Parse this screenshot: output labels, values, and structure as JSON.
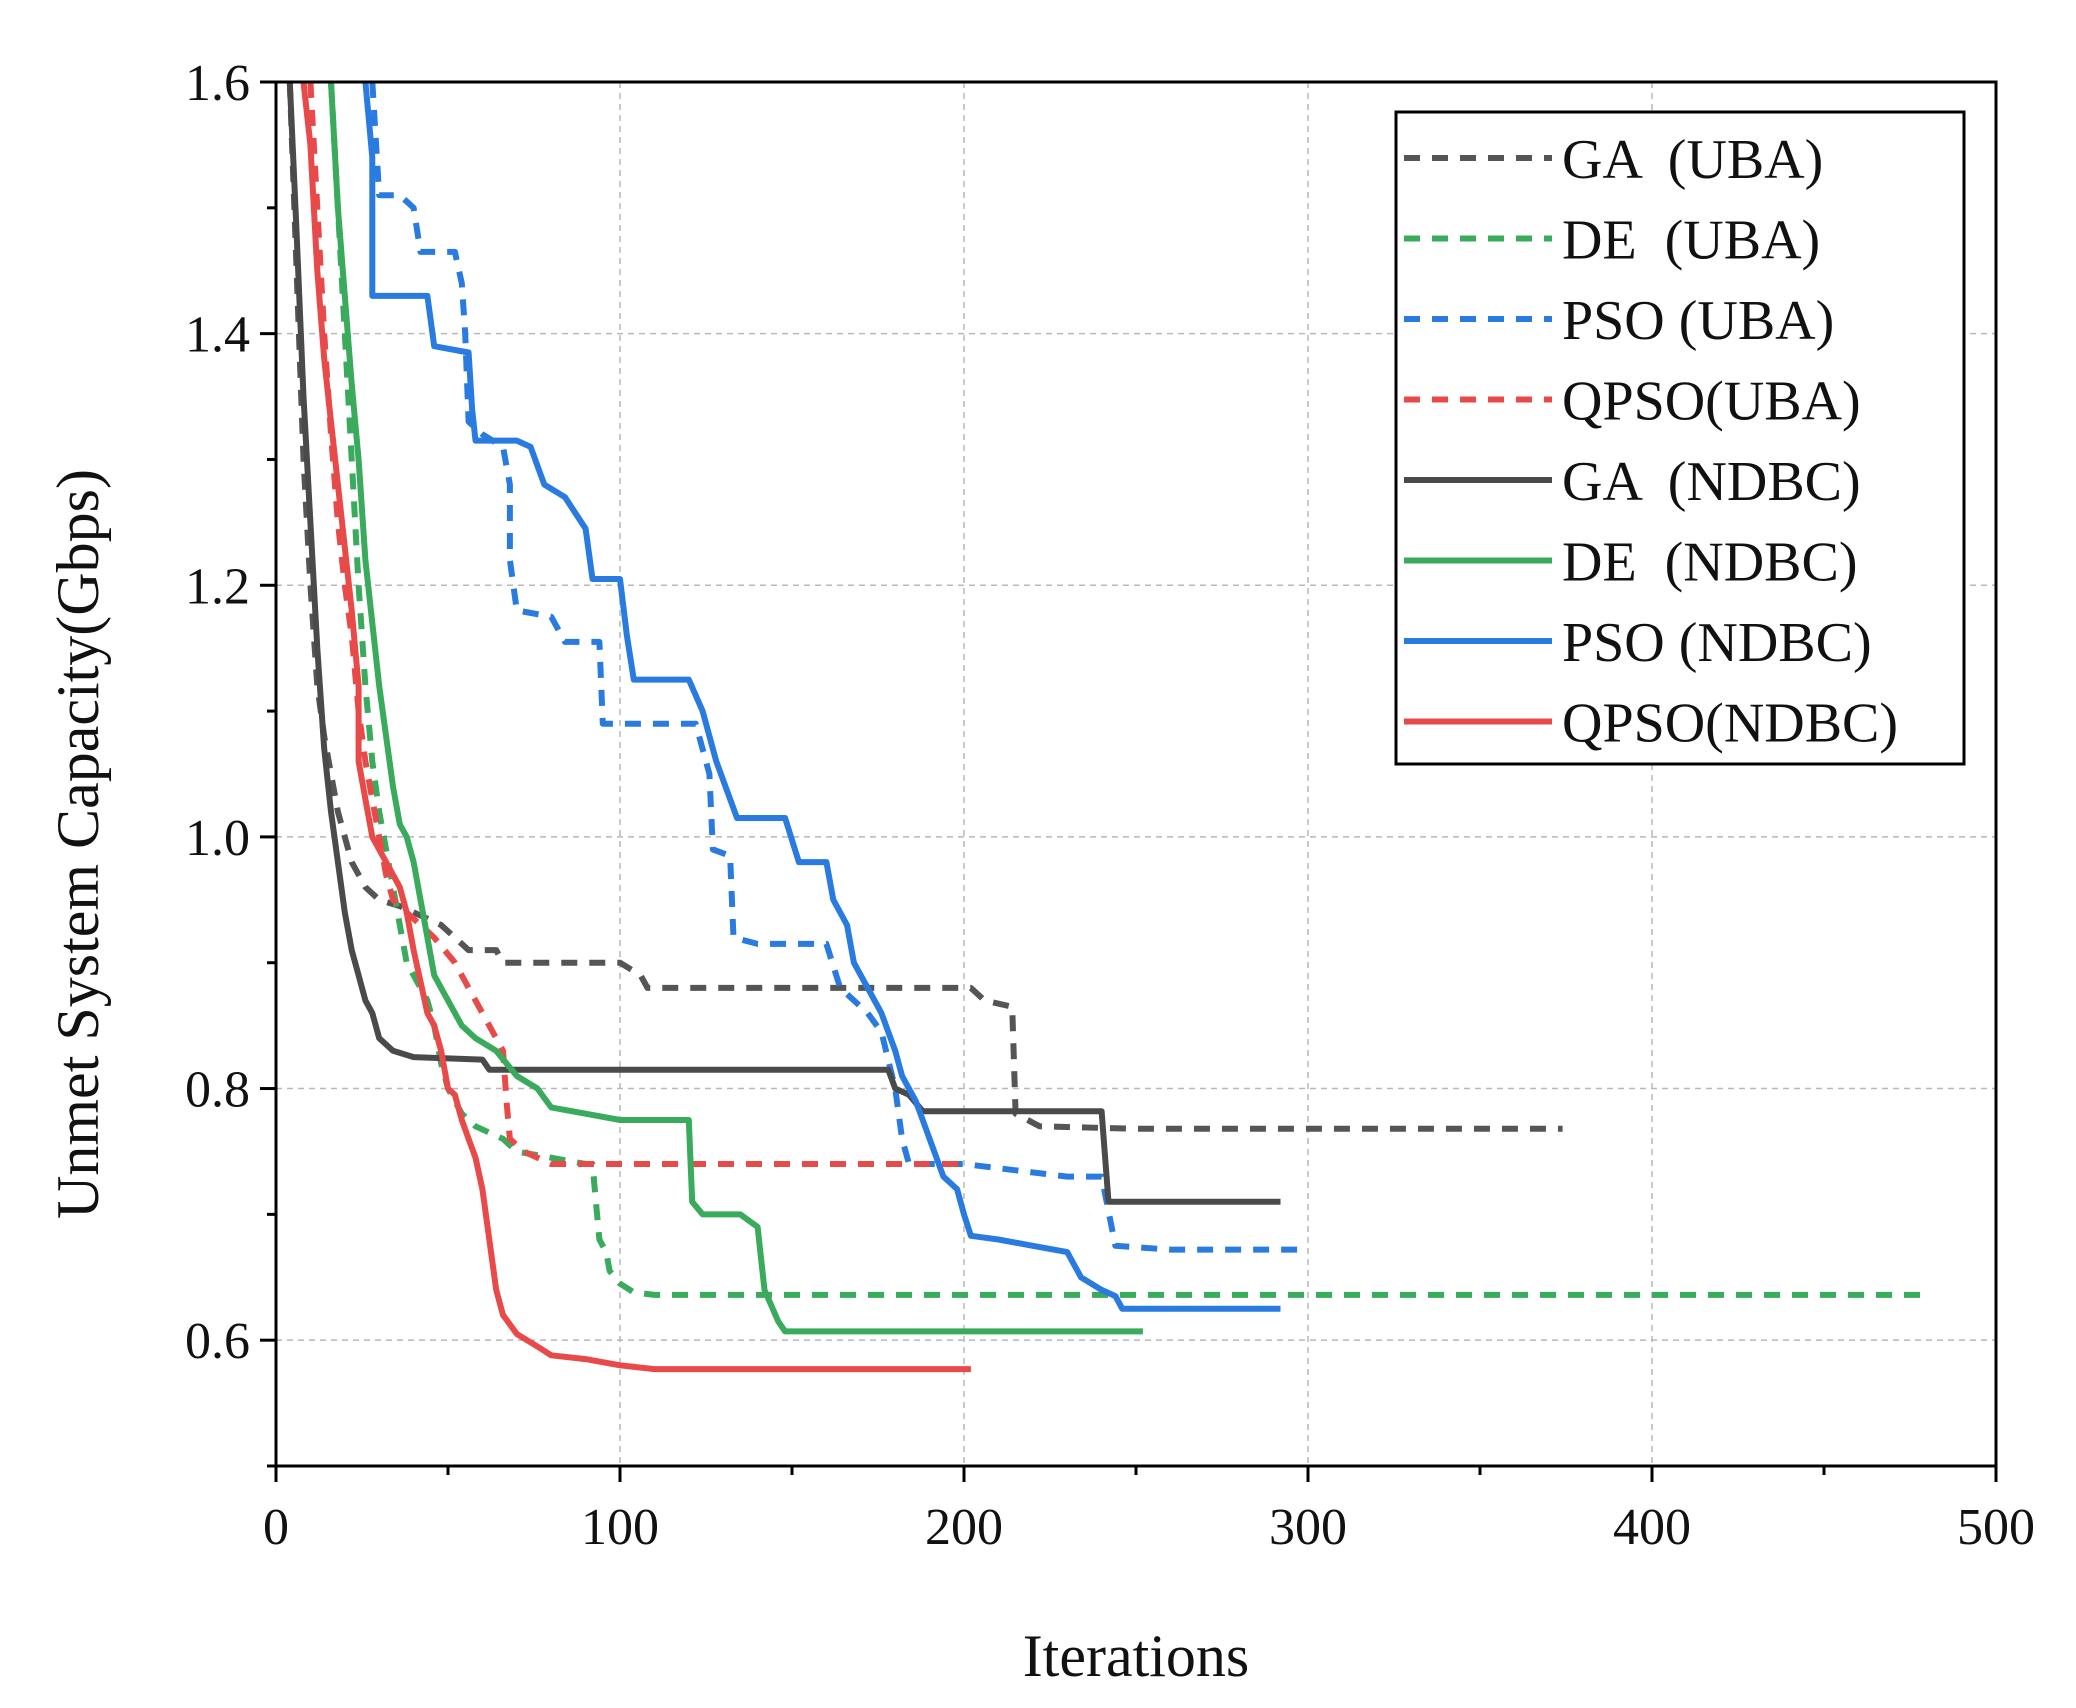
{
  "chart_data": {
    "type": "line",
    "title": "",
    "xlabel": "Iterations",
    "ylabel": "Unmet System Capacity(Gbps)",
    "xlim": [
      0,
      500
    ],
    "ylim": [
      0.5,
      1.6
    ],
    "x_ticks": [
      0,
      100,
      200,
      300,
      400,
      500
    ],
    "x_tick_labels": [
      "0",
      "100",
      "200",
      "300",
      "400",
      "500"
    ],
    "y_ticks": [
      0.6,
      0.8,
      1.0,
      1.2,
      1.4,
      1.6
    ],
    "y_tick_labels": [
      "0.6",
      "0.8",
      "1.0",
      "1.2",
      "1.4",
      "1.6"
    ],
    "grid": true,
    "legend_position": "top-right",
    "series": [
      {
        "name": "GA  (UBA)",
        "color": "#555555",
        "style": "dashed",
        "points": [
          [
            4,
            1.6
          ],
          [
            6,
            1.45
          ],
          [
            8,
            1.3
          ],
          [
            10,
            1.2
          ],
          [
            12,
            1.12
          ],
          [
            14,
            1.08
          ],
          [
            16,
            1.05
          ],
          [
            18,
            1.02
          ],
          [
            20,
            1.0
          ],
          [
            22,
            0.98
          ],
          [
            24,
            0.97
          ],
          [
            26,
            0.96
          ],
          [
            30,
            0.95
          ],
          [
            36,
            0.945
          ],
          [
            40,
            0.94
          ],
          [
            44,
            0.935
          ],
          [
            48,
            0.93
          ],
          [
            52,
            0.92
          ],
          [
            56,
            0.91
          ],
          [
            60,
            0.91
          ],
          [
            64,
            0.91
          ],
          [
            66,
            0.9
          ],
          [
            70,
            0.9
          ],
          [
            90,
            0.9
          ],
          [
            100,
            0.9
          ],
          [
            106,
            0.89
          ],
          [
            108,
            0.88
          ],
          [
            180,
            0.88
          ],
          [
            200,
            0.88
          ],
          [
            202,
            0.88
          ],
          [
            206,
            0.87
          ],
          [
            214,
            0.865
          ],
          [
            215,
            0.78
          ],
          [
            222,
            0.77
          ],
          [
            250,
            0.768
          ],
          [
            300,
            0.768
          ],
          [
            374,
            0.768
          ]
        ]
      },
      {
        "name": "DE  (UBA)",
        "color": "#3aaa5c",
        "style": "dashed",
        "points": [
          [
            16,
            1.6
          ],
          [
            18,
            1.5
          ],
          [
            20,
            1.4
          ],
          [
            22,
            1.3
          ],
          [
            24,
            1.2
          ],
          [
            26,
            1.12
          ],
          [
            28,
            1.06
          ],
          [
            30,
            1.02
          ],
          [
            32,
            0.99
          ],
          [
            34,
            0.96
          ],
          [
            36,
            0.93
          ],
          [
            38,
            0.9
          ],
          [
            40,
            0.89
          ],
          [
            44,
            0.87
          ],
          [
            46,
            0.85
          ],
          [
            48,
            0.82
          ],
          [
            50,
            0.8
          ],
          [
            52,
            0.79
          ],
          [
            54,
            0.78
          ],
          [
            58,
            0.77
          ],
          [
            62,
            0.765
          ],
          [
            66,
            0.76
          ],
          [
            70,
            0.75
          ],
          [
            80,
            0.745
          ],
          [
            90,
            0.74
          ],
          [
            92,
            0.74
          ],
          [
            93,
            0.71
          ],
          [
            94,
            0.68
          ],
          [
            96,
            0.67
          ],
          [
            97,
            0.655
          ],
          [
            100,
            0.645
          ],
          [
            104,
            0.638
          ],
          [
            110,
            0.636
          ],
          [
            150,
            0.636
          ],
          [
            200,
            0.636
          ],
          [
            300,
            0.636
          ],
          [
            400,
            0.636
          ],
          [
            478,
            0.636
          ]
        ]
      },
      {
        "name": "PSO (UBA)",
        "color": "#2a7be0",
        "style": "dashed",
        "points": [
          [
            28,
            1.6
          ],
          [
            30,
            1.51
          ],
          [
            36,
            1.51
          ],
          [
            40,
            1.5
          ],
          [
            42,
            1.465
          ],
          [
            52,
            1.465
          ],
          [
            54,
            1.44
          ],
          [
            55,
            1.4
          ],
          [
            56,
            1.33
          ],
          [
            60,
            1.32
          ],
          [
            66,
            1.31
          ],
          [
            68,
            1.28
          ],
          [
            68,
            1.22
          ],
          [
            70,
            1.18
          ],
          [
            80,
            1.175
          ],
          [
            84,
            1.155
          ],
          [
            94,
            1.155
          ],
          [
            95,
            1.09
          ],
          [
            108,
            1.09
          ],
          [
            122,
            1.09
          ],
          [
            126,
            1.05
          ],
          [
            127,
            0.99
          ],
          [
            132,
            0.985
          ],
          [
            133,
            0.92
          ],
          [
            140,
            0.915
          ],
          [
            160,
            0.915
          ],
          [
            164,
            0.88
          ],
          [
            172,
            0.86
          ],
          [
            176,
            0.845
          ],
          [
            180,
            0.8
          ],
          [
            182,
            0.76
          ],
          [
            184,
            0.74
          ],
          [
            200,
            0.74
          ],
          [
            230,
            0.73
          ],
          [
            240,
            0.73
          ],
          [
            244,
            0.675
          ],
          [
            260,
            0.672
          ],
          [
            300,
            0.672
          ]
        ]
      },
      {
        "name": "QPSO(UBA)",
        "color": "#e84a4a",
        "style": "dashed",
        "points": [
          [
            10,
            1.6
          ],
          [
            12,
            1.5
          ],
          [
            14,
            1.4
          ],
          [
            16,
            1.32
          ],
          [
            18,
            1.25
          ],
          [
            20,
            1.2
          ],
          [
            22,
            1.16
          ],
          [
            24,
            1.1
          ],
          [
            26,
            1.06
          ],
          [
            28,
            1.03
          ],
          [
            30,
            1.0
          ],
          [
            32,
            0.97
          ],
          [
            34,
            0.95
          ],
          [
            38,
            0.94
          ],
          [
            42,
            0.93
          ],
          [
            46,
            0.92
          ],
          [
            52,
            0.9
          ],
          [
            56,
            0.88
          ],
          [
            60,
            0.86
          ],
          [
            64,
            0.84
          ],
          [
            66,
            0.83
          ],
          [
            67,
            0.79
          ],
          [
            68,
            0.76
          ],
          [
            72,
            0.75
          ],
          [
            76,
            0.745
          ],
          [
            80,
            0.74
          ],
          [
            100,
            0.74
          ],
          [
            150,
            0.74
          ],
          [
            180,
            0.74
          ],
          [
            200,
            0.74
          ]
        ]
      },
      {
        "name": "GA  (NDBC)",
        "color": "#4a4a4a",
        "style": "solid",
        "points": [
          [
            4,
            1.6
          ],
          [
            6,
            1.48
          ],
          [
            8,
            1.35
          ],
          [
            10,
            1.25
          ],
          [
            12,
            1.15
          ],
          [
            14,
            1.07
          ],
          [
            16,
            1.02
          ],
          [
            18,
            0.98
          ],
          [
            20,
            0.94
          ],
          [
            22,
            0.91
          ],
          [
            24,
            0.89
          ],
          [
            26,
            0.87
          ],
          [
            28,
            0.86
          ],
          [
            30,
            0.84
          ],
          [
            34,
            0.83
          ],
          [
            40,
            0.825
          ],
          [
            60,
            0.823
          ],
          [
            62,
            0.815
          ],
          [
            100,
            0.815
          ],
          [
            140,
            0.815
          ],
          [
            178,
            0.815
          ],
          [
            180,
            0.8
          ],
          [
            184,
            0.795
          ],
          [
            188,
            0.782
          ],
          [
            200,
            0.782
          ],
          [
            240,
            0.782
          ],
          [
            242,
            0.71
          ],
          [
            280,
            0.71
          ],
          [
            292,
            0.71
          ]
        ]
      },
      {
        "name": "DE  (NDBC)",
        "color": "#3aaa5c",
        "style": "solid",
        "points": [
          [
            16,
            1.6
          ],
          [
            18,
            1.5
          ],
          [
            20,
            1.43
          ],
          [
            22,
            1.36
          ],
          [
            24,
            1.3
          ],
          [
            26,
            1.22
          ],
          [
            28,
            1.17
          ],
          [
            30,
            1.12
          ],
          [
            32,
            1.08
          ],
          [
            34,
            1.04
          ],
          [
            36,
            1.01
          ],
          [
            38,
            1.0
          ],
          [
            40,
            0.98
          ],
          [
            42,
            0.95
          ],
          [
            44,
            0.92
          ],
          [
            46,
            0.89
          ],
          [
            50,
            0.87
          ],
          [
            54,
            0.85
          ],
          [
            58,
            0.84
          ],
          [
            64,
            0.83
          ],
          [
            70,
            0.81
          ],
          [
            76,
            0.8
          ],
          [
            80,
            0.785
          ],
          [
            90,
            0.78
          ],
          [
            100,
            0.775
          ],
          [
            120,
            0.775
          ],
          [
            121,
            0.71
          ],
          [
            124,
            0.7
          ],
          [
            135,
            0.7
          ],
          [
            140,
            0.69
          ],
          [
            142,
            0.64
          ],
          [
            146,
            0.615
          ],
          [
            148,
            0.607
          ],
          [
            200,
            0.607
          ],
          [
            252,
            0.607
          ]
        ]
      },
      {
        "name": "PSO (NDBC)",
        "color": "#2a7be0",
        "style": "solid",
        "points": [
          [
            26,
            1.6
          ],
          [
            28,
            1.54
          ],
          [
            28,
            1.43
          ],
          [
            36,
            1.43
          ],
          [
            44,
            1.43
          ],
          [
            46,
            1.39
          ],
          [
            56,
            1.385
          ],
          [
            57,
            1.34
          ],
          [
            58,
            1.315
          ],
          [
            70,
            1.315
          ],
          [
            74,
            1.31
          ],
          [
            78,
            1.28
          ],
          [
            84,
            1.27
          ],
          [
            90,
            1.245
          ],
          [
            92,
            1.205
          ],
          [
            100,
            1.205
          ],
          [
            102,
            1.16
          ],
          [
            104,
            1.125
          ],
          [
            120,
            1.125
          ],
          [
            124,
            1.1
          ],
          [
            128,
            1.06
          ],
          [
            134,
            1.015
          ],
          [
            148,
            1.015
          ],
          [
            152,
            0.98
          ],
          [
            160,
            0.98
          ],
          [
            162,
            0.95
          ],
          [
            166,
            0.93
          ],
          [
            168,
            0.9
          ],
          [
            172,
            0.88
          ],
          [
            176,
            0.86
          ],
          [
            180,
            0.83
          ],
          [
            182,
            0.81
          ],
          [
            186,
            0.79
          ],
          [
            190,
            0.76
          ],
          [
            194,
            0.73
          ],
          [
            198,
            0.72
          ],
          [
            200,
            0.7
          ],
          [
            202,
            0.683
          ],
          [
            210,
            0.68
          ],
          [
            220,
            0.675
          ],
          [
            230,
            0.67
          ],
          [
            234,
            0.65
          ],
          [
            240,
            0.64
          ],
          [
            244,
            0.635
          ],
          [
            246,
            0.625
          ],
          [
            292,
            0.625
          ]
        ]
      },
      {
        "name": "QPSO(NDBC)",
        "color": "#e84a4a",
        "style": "solid",
        "points": [
          [
            8,
            1.6
          ],
          [
            10,
            1.55
          ],
          [
            12,
            1.45
          ],
          [
            14,
            1.38
          ],
          [
            16,
            1.33
          ],
          [
            18,
            1.28
          ],
          [
            20,
            1.23
          ],
          [
            22,
            1.18
          ],
          [
            24,
            1.12
          ],
          [
            24,
            1.06
          ],
          [
            26,
            1.03
          ],
          [
            28,
            1.0
          ],
          [
            32,
            0.98
          ],
          [
            36,
            0.96
          ],
          [
            38,
            0.94
          ],
          [
            40,
            0.91
          ],
          [
            42,
            0.885
          ],
          [
            44,
            0.86
          ],
          [
            46,
            0.85
          ],
          [
            48,
            0.83
          ],
          [
            50,
            0.8
          ],
          [
            52,
            0.795
          ],
          [
            54,
            0.775
          ],
          [
            56,
            0.76
          ],
          [
            58,
            0.745
          ],
          [
            60,
            0.72
          ],
          [
            62,
            0.68
          ],
          [
            64,
            0.64
          ],
          [
            66,
            0.62
          ],
          [
            70,
            0.605
          ],
          [
            76,
            0.595
          ],
          [
            80,
            0.588
          ],
          [
            90,
            0.585
          ],
          [
            100,
            0.58
          ],
          [
            110,
            0.577
          ],
          [
            150,
            0.577
          ],
          [
            202,
            0.577
          ]
        ]
      }
    ]
  }
}
